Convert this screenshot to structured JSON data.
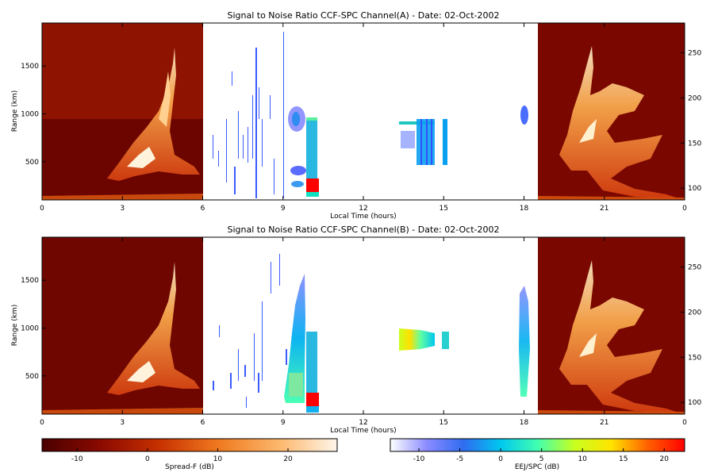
{
  "chart_data": [
    {
      "type": "heatmap",
      "title": "Signal to Noise Ratio CCF-SPC Channel(A) - Date: 02-Oct-2002",
      "xlabel": "Local Time (hours)",
      "ylabel": "Range (km)",
      "xlim": [
        0,
        24
      ],
      "xticks": [
        "0",
        "3",
        "6",
        "9",
        "12",
        "15",
        "18",
        "21",
        "0"
      ],
      "ylim": [
        100,
        1950
      ],
      "yticks": [
        500,
        1000,
        1500
      ],
      "y2ticks": [
        100,
        150,
        200,
        250
      ],
      "y2lim": [
        87,
        283
      ],
      "spread_f_windows": [
        [
          0,
          6
        ],
        [
          18.6,
          24
        ]
      ],
      "eej_regions": [
        {
          "t0": 9.0,
          "t1": 9.6,
          "r0": 850,
          "r1": 1100,
          "db": -6
        },
        {
          "t0": 9.0,
          "t1": 9.6,
          "r0": 270,
          "r1": 420,
          "db": -5
        },
        {
          "t0": 9.8,
          "t1": 10.3,
          "r0": 150,
          "r1": 990,
          "db": 2
        },
        {
          "t0": 9.8,
          "t1": 10.3,
          "r0": 190,
          "r1": 330,
          "db": 22
        },
        {
          "t0": 13.4,
          "t1": 15.0,
          "r0": 500,
          "r1": 960,
          "db": 3
        },
        {
          "t0": 17.9,
          "t1": 18.2,
          "r0": 940,
          "r1": 1120,
          "db": -6
        }
      ]
    },
    {
      "type": "heatmap",
      "title": "Signal to Noise Ratio CCF-SPC Channel(B) - Date: 02-Oct-2002",
      "xlabel": "Local Time (hours)",
      "ylabel": "Range (km)",
      "xlim": [
        0,
        24
      ],
      "xticks": [
        "0",
        "3",
        "6",
        "9",
        "12",
        "15",
        "18",
        "21",
        "0"
      ],
      "ylim": [
        100,
        1950
      ],
      "yticks": [
        500,
        1000,
        1500
      ],
      "y2ticks": [
        100,
        150,
        200,
        250
      ],
      "y2lim": [
        87,
        283
      ],
      "spread_f_windows": [
        [
          0,
          6
        ],
        [
          18.6,
          24
        ]
      ],
      "eej_regions": [
        {
          "t0": 9.1,
          "t1": 9.8,
          "r0": 280,
          "r1": 1650,
          "db": 3
        },
        {
          "t0": 9.8,
          "t1": 10.3,
          "r0": 150,
          "r1": 990,
          "db": 1
        },
        {
          "t0": 9.8,
          "t1": 10.3,
          "r0": 190,
          "r1": 320,
          "db": 22
        },
        {
          "t0": 13.4,
          "t1": 14.6,
          "r0": 810,
          "r1": 1020,
          "db": 10
        },
        {
          "t0": 15.0,
          "t1": 15.3,
          "r0": 840,
          "r1": 990,
          "db": 4
        },
        {
          "t0": 17.9,
          "t1": 18.3,
          "r0": 300,
          "r1": 1300,
          "db": 2
        }
      ]
    }
  ],
  "colorbars": [
    {
      "label": "Spread-F (dB)",
      "ticks": [
        "-10",
        "0",
        "10",
        "20"
      ],
      "range": [
        -15,
        27
      ],
      "colors": [
        "#4a0000",
        "#8b0a00",
        "#c83200",
        "#f07a20",
        "#fcb66a",
        "#fff6ea"
      ]
    },
    {
      "label": "EEJ/SPC (dB)",
      "ticks": [
        "-10",
        "-5",
        "0",
        "5",
        "10",
        "15",
        "20"
      ],
      "range": [
        -13.5,
        22.5
      ],
      "colors": [
        "#ffffff",
        "#8a8aff",
        "#2f6cf0",
        "#00c8f0",
        "#40ffb0",
        "#c8ff20",
        "#ffe400",
        "#ff6000",
        "#ff0000"
      ]
    }
  ]
}
